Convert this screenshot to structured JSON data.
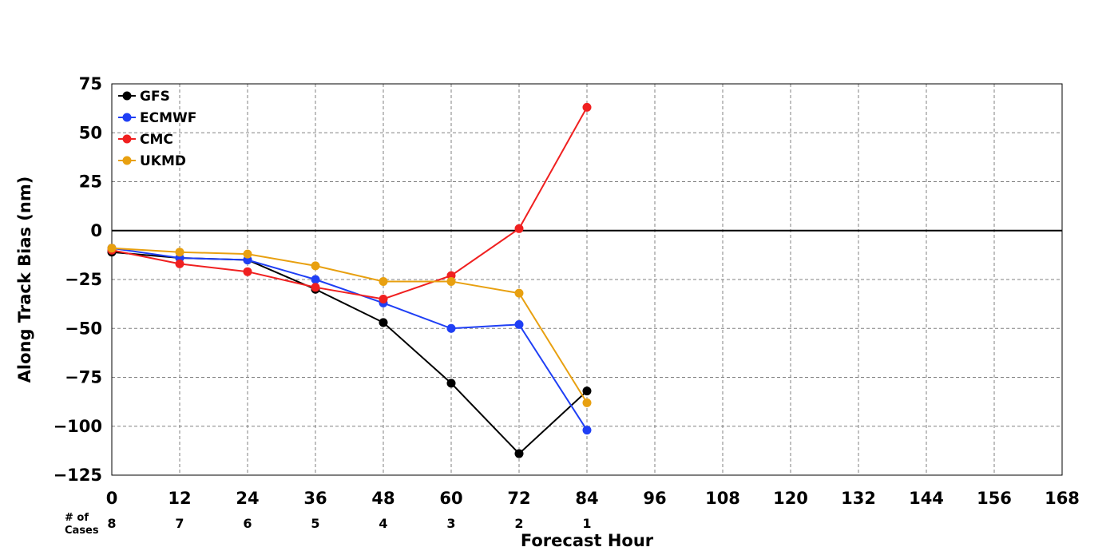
{
  "chart_data": {
    "type": "line",
    "title": "",
    "xlabel": "Forecast Hour",
    "ylabel": "Along Track Bias (nm)",
    "xlim": [
      0,
      168
    ],
    "ylim": [
      -125,
      75
    ],
    "xticks": [
      0,
      12,
      24,
      36,
      48,
      60,
      72,
      84,
      96,
      108,
      120,
      132,
      144,
      156,
      168
    ],
    "xtick_labels": [
      "0",
      "12",
      "24",
      "36",
      "48",
      "60",
      "72",
      "84",
      "96",
      "108",
      "120",
      "132",
      "144",
      "156",
      "168"
    ],
    "yticks": [
      75,
      50,
      25,
      0,
      -25,
      -50,
      -75,
      -100,
      -125
    ],
    "ytick_labels": [
      "75",
      "50",
      "25",
      "0",
      "−25",
      "−50",
      "−75",
      "−100",
      "−125"
    ],
    "grid": true,
    "zero_line": true,
    "legend_position": "top-left",
    "x": [
      0,
      12,
      24,
      36,
      48,
      60,
      72,
      84
    ],
    "series": [
      {
        "name": "GFS",
        "color": "#000000",
        "values": [
          -11,
          -14,
          -15,
          -30,
          -47,
          -78,
          -114,
          -82
        ]
      },
      {
        "name": "ECMWF",
        "color": "#1f3ff5",
        "values": [
          -9,
          -14,
          -15,
          -25,
          -37,
          -50,
          -48,
          -102
        ]
      },
      {
        "name": "CMC",
        "color": "#f02020",
        "values": [
          -10,
          -17,
          -21,
          -29,
          -35,
          -23,
          1,
          63
        ]
      },
      {
        "name": "UKMD",
        "color": "#e8a010",
        "values": [
          -9,
          -11,
          -12,
          -18,
          -26,
          -26,
          -32,
          -88
        ]
      }
    ],
    "cases": {
      "label_line1": "# of",
      "label_line2": "Cases",
      "x": [
        0,
        12,
        24,
        36,
        48,
        60,
        72,
        84
      ],
      "counts": [
        "8",
        "7",
        "6",
        "5",
        "4",
        "3",
        "2",
        "1"
      ]
    }
  }
}
